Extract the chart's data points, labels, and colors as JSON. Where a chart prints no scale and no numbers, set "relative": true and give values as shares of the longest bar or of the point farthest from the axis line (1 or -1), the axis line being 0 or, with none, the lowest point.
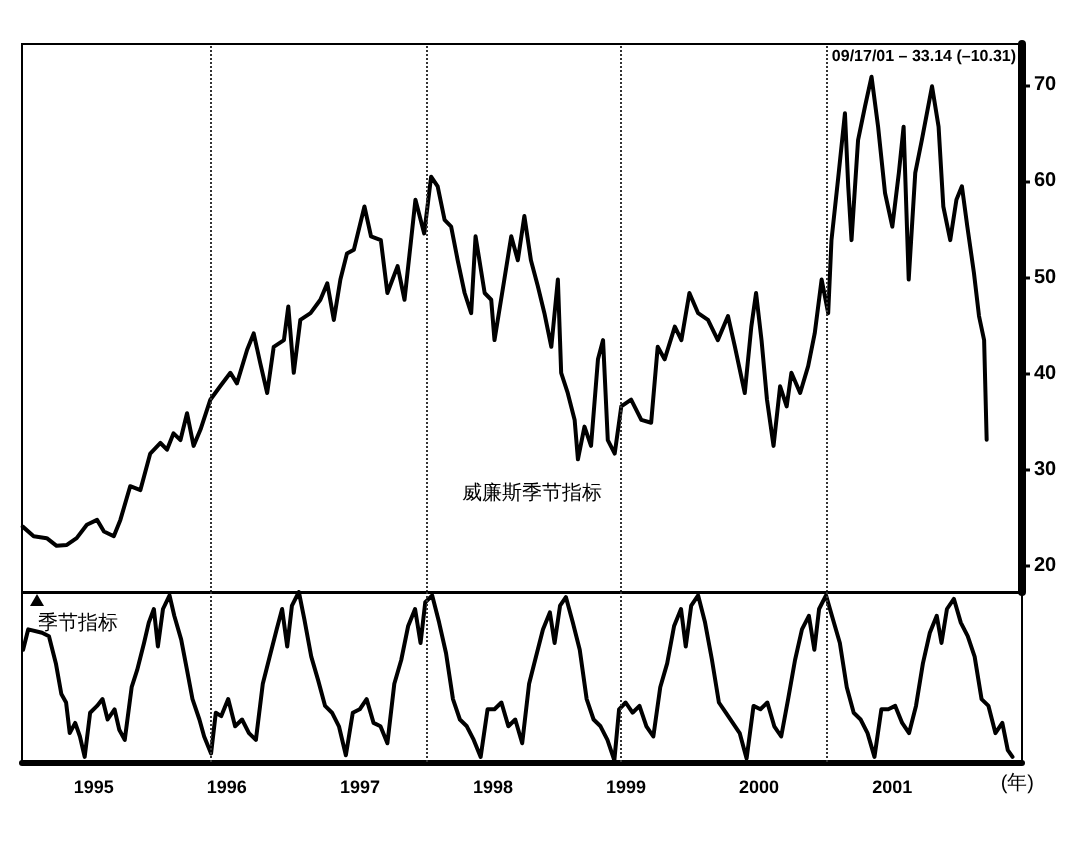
{
  "chart_data": [
    {
      "type": "line",
      "annotations": [
        "09/17/01 – 33.14 (–10.31)",
        "威廉斯季节指标"
      ],
      "x": [
        "1994-06-20",
        "1994-07-20",
        "1994-08-25",
        "1994-09-21",
        "1994-10-19",
        "1994-11-15",
        "1994-12-13",
        "1995-01-10",
        "1995-01-29",
        "1995-02-25",
        "1995-03-15",
        "1995-04-11",
        "1995-05-09",
        "1995-06-05",
        "1995-07-03",
        "1995-07-21",
        "1995-08-08",
        "1995-08-27",
        "1995-09-14",
        "1995-10-02",
        "1995-10-21",
        "1995-11-17",
        "1995-12-14",
        "1996-01-11",
        "1996-01-29",
        "1996-02-26",
        "1996-03-15",
        "1996-04-02",
        "1996-04-21",
        "1996-05-09",
        "1996-06-06",
        "1996-06-18",
        "1996-07-03",
        "1996-07-21",
        "1996-08-18",
        "1996-09-14",
        "1996-10-03",
        "1996-10-21",
        "1996-11-08",
        "1996-11-26",
        "1996-12-15",
        "1997-01-13",
        "1997-01-31",
        "1997-02-27",
        "1997-03-17",
        "1997-04-14",
        "1997-05-03",
        "1997-05-21",
        "1997-06-02",
        "1997-06-26",
        "1997-07-15",
        "1997-08-02",
        "1997-08-21",
        "1997-09-08",
        "1997-09-26",
        "1997-10-15",
        "1997-11-02",
        "1997-11-14",
        "1997-12-09",
        "1997-12-27",
        "1998-01-05",
        "1998-02-01",
        "1998-02-20",
        "1998-03-10",
        "1998-03-28",
        "1998-04-15",
        "1998-05-04",
        "1998-05-22",
        "1998-06-10",
        "1998-06-28",
        "1998-07-07",
        "1998-07-25",
        "1998-08-13",
        "1998-08-22",
        "1998-09-09",
        "1998-09-27",
        "1998-10-16",
        "1998-10-30",
        "1998-11-12",
        "1998-12-01",
        "1998-12-19",
        "1999-01-15",
        "1999-02-12",
        "1999-03-11",
        "1999-03-29",
        "1999-04-17",
        "1999-05-15",
        "1999-06-02",
        "1999-06-24",
        "1999-07-18",
        "1999-08-14",
        "1999-09-10",
        "1999-10-08",
        "1999-10-27",
        "1999-11-23",
        "1999-12-11",
        "1999-12-24",
        "2000-01-08",
        "2000-01-23",
        "2000-02-10",
        "2000-02-28",
        "2000-03-17",
        "2000-03-30",
        "2000-04-23",
        "2000-05-15",
        "2000-06-02",
        "2000-06-21",
        "2000-07-09",
        "2000-07-18",
        "2000-08-05",
        "2000-08-24",
        "2000-09-02",
        "2000-09-11",
        "2000-09-29",
        "2000-10-18",
        "2000-11-05",
        "2000-11-23",
        "2000-12-12",
        "2001-01-01",
        "2001-01-19",
        "2001-02-01",
        "2001-02-15",
        "2001-03-05",
        "2001-03-23",
        "2001-04-20",
        "2001-05-08",
        "2001-05-21",
        "2001-06-09",
        "2001-06-26",
        "2001-07-11",
        "2001-07-26",
        "2001-08-13",
        "2001-08-27",
        "2001-09-10",
        "2001-09-17"
      ],
      "values": [
        24.1,
        23.1,
        22.9,
        22.1,
        22.2,
        22.9,
        24.3,
        24.8,
        23.6,
        23.1,
        24.8,
        28.3,
        27.9,
        31.7,
        32.8,
        32.1,
        33.8,
        33.1,
        35.9,
        32.5,
        34.2,
        37.3,
        38.7,
        40.1,
        39.0,
        42.5,
        44.2,
        41.1,
        38.0,
        42.8,
        43.5,
        47.0,
        40.1,
        45.6,
        46.3,
        47.7,
        49.4,
        45.6,
        49.8,
        52.5,
        52.9,
        57.4,
        54.3,
        53.9,
        48.4,
        51.2,
        47.7,
        53.9,
        58.1,
        54.6,
        60.5,
        59.5,
        56.0,
        55.3,
        51.8,
        48.4,
        46.3,
        54.3,
        48.4,
        47.7,
        43.5,
        49.8,
        54.3,
        51.8,
        56.4,
        51.8,
        49.1,
        46.3,
        42.8,
        49.8,
        40.1,
        38.0,
        35.2,
        31.1,
        34.5,
        32.5,
        41.5,
        43.5,
        33.1,
        31.7,
        36.6,
        37.3,
        35.2,
        34.9,
        42.8,
        41.5,
        44.9,
        43.5,
        48.4,
        46.3,
        45.6,
        43.5,
        46.0,
        42.8,
        38.0,
        44.9,
        48.4,
        43.5,
        37.3,
        32.5,
        38.7,
        36.6,
        40.1,
        38.0,
        40.8,
        44.2,
        49.8,
        46.3,
        53.9,
        60.2,
        67.1,
        59.5,
        53.9,
        64.3,
        67.8,
        70.9,
        65.7,
        58.8,
        55.3,
        60.9,
        65.7,
        49.8,
        60.9,
        64.3,
        69.9,
        65.7,
        57.4,
        53.9,
        58.1,
        59.5,
        55.3,
        50.5,
        46.0,
        43.5,
        33.14
      ],
      "color": "#000000",
      "xlim": [
        "1994-06-18",
        "2001-12-23"
      ],
      "xticks": [
        "1995",
        "1996",
        "1997",
        "1998",
        "1999",
        "2000",
        "2001"
      ],
      "ylim": [
        17.3,
        74.3
      ],
      "yticks": [
        20,
        30,
        40,
        50,
        60,
        70
      ],
      "ref_lines": [
        {
          "axis": "x",
          "value": "1995-11-15",
          "color": "#333333",
          "line_style": "dotted"
        },
        {
          "axis": "x",
          "value": "1997-07-01",
          "color": "#333333",
          "line_style": "dotted"
        },
        {
          "axis": "x",
          "value": "1998-12-17",
          "color": "#333333",
          "line_style": "dotted"
        },
        {
          "axis": "x",
          "value": "2000-07-06",
          "color": "#333333",
          "line_style": "dotted"
        }
      ],
      "tick_labels": "y"
    },
    {
      "type": "line",
      "title": "季节指标",
      "relative": true,
      "xlabel": "(年)",
      "x": [
        "1994-06-21",
        "1994-07-05",
        "1994-08-12",
        "1994-08-31",
        "1994-09-19",
        "1994-10-04",
        "1994-10-17",
        "1994-10-27",
        "1994-11-11",
        "1994-11-24",
        "1994-12-07",
        "1994-12-22",
        "1995-01-10",
        "1995-01-25",
        "1995-02-08",
        "1995-02-27",
        "1995-03-12",
        "1995-03-27",
        "1995-04-15",
        "1995-04-30",
        "1995-05-19",
        "1995-06-01",
        "1995-06-15",
        "1995-06-26",
        "1995-07-10",
        "1995-07-28",
        "1995-08-10",
        "1995-08-29",
        "1995-09-14",
        "1995-09-29",
        "1995-10-18",
        "1995-10-31",
        "1995-11-19",
        "1995-12-02",
        "1995-12-17",
        "1996-01-05",
        "1996-01-24",
        "1996-02-12",
        "1996-03-02",
        "1996-03-21",
        "1996-04-09",
        "1996-04-28",
        "1996-05-17",
        "1996-06-01",
        "1996-06-15",
        "1996-06-28",
        "1996-07-17",
        "1996-08-01",
        "1996-08-20",
        "1996-09-08",
        "1996-09-27",
        "1996-10-16",
        "1996-11-04",
        "1996-11-23",
        "1996-12-12",
        "1996-12-31",
        "1997-01-19",
        "1997-02-07",
        "1997-02-26",
        "1997-03-17",
        "1997-04-05",
        "1997-04-24",
        "1997-05-13",
        "1997-06-01",
        "1997-06-16",
        "1997-06-29",
        "1997-07-18",
        "1997-08-06",
        "1997-08-25",
        "1997-09-13",
        "1997-10-02",
        "1997-10-21",
        "1997-11-09",
        "1997-11-28",
        "1997-12-17",
        "1998-01-05",
        "1998-01-24",
        "1998-02-12",
        "1998-03-03",
        "1998-03-22",
        "1998-04-10",
        "1998-04-29",
        "1998-05-18",
        "1998-06-06",
        "1998-06-19",
        "1998-07-04",
        "1998-07-20",
        "1998-08-08",
        "1998-08-27",
        "1998-09-15",
        "1998-10-04",
        "1998-10-23",
        "1998-11-11",
        "1998-11-30",
        "1998-12-13",
        "1998-12-31",
        "1999-01-19",
        "1999-02-07",
        "1999-02-26",
        "1999-03-17",
        "1999-04-05",
        "1999-04-24",
        "1999-05-13",
        "1999-06-01",
        "1999-06-14",
        "1999-06-29",
        "1999-07-18",
        "1999-08-06",
        "1999-08-25",
        "1999-09-13",
        "1999-10-02",
        "1999-10-21",
        "1999-11-09",
        "1999-11-28",
        "1999-12-17",
        "2000-01-05",
        "2000-01-24",
        "2000-02-12",
        "2000-03-02",
        "2000-03-21",
        "2000-04-09",
        "2000-04-28",
        "2000-05-17",
        "2000-06-01",
        "2000-06-14",
        "2000-07-03",
        "2000-07-22",
        "2000-08-10",
        "2000-08-29",
        "2000-09-17",
        "2000-10-06",
        "2000-10-25",
        "2000-11-13",
        "2000-12-02",
        "2000-12-21",
        "2001-01-09",
        "2001-01-28",
        "2001-02-16",
        "2001-03-07",
        "2001-03-26",
        "2001-04-14",
        "2001-05-03",
        "2001-05-16",
        "2001-05-31",
        "2001-06-19",
        "2001-07-08",
        "2001-07-27",
        "2001-08-15",
        "2001-09-03",
        "2001-09-22",
        "2001-10-11",
        "2001-10-30",
        "2001-11-14",
        "2001-11-27"
      ],
      "values": [
        0.66,
        0.78,
        0.76,
        0.74,
        0.58,
        0.4,
        0.35,
        0.17,
        0.23,
        0.15,
        0.03,
        0.29,
        0.33,
        0.37,
        0.25,
        0.31,
        0.19,
        0.13,
        0.44,
        0.54,
        0.7,
        0.82,
        0.9,
        0.68,
        0.9,
        0.98,
        0.86,
        0.72,
        0.54,
        0.37,
        0.25,
        0.15,
        0.05,
        0.29,
        0.27,
        0.37,
        0.21,
        0.25,
        0.17,
        0.13,
        0.46,
        0.62,
        0.78,
        0.9,
        0.68,
        0.92,
        1,
        0.84,
        0.62,
        0.48,
        0.33,
        0.29,
        0.21,
        0.04,
        0.29,
        0.31,
        0.37,
        0.23,
        0.21,
        0.11,
        0.46,
        0.6,
        0.8,
        0.9,
        0.7,
        0.94,
        0.98,
        0.82,
        0.64,
        0.37,
        0.25,
        0.21,
        0.13,
        0.03,
        0.31,
        0.31,
        0.35,
        0.21,
        0.25,
        0.11,
        0.46,
        0.62,
        0.78,
        0.88,
        0.7,
        0.92,
        0.97,
        0.82,
        0.66,
        0.37,
        0.25,
        0.21,
        0.13,
        0.01,
        0.31,
        0.35,
        0.29,
        0.33,
        0.21,
        0.15,
        0.44,
        0.58,
        0.8,
        0.9,
        0.68,
        0.92,
        0.98,
        0.82,
        0.6,
        0.35,
        0.29,
        0.23,
        0.17,
        0.02,
        0.33,
        0.31,
        0.35,
        0.21,
        0.15,
        0.37,
        0.6,
        0.78,
        0.86,
        0.66,
        0.9,
        0.98,
        0.84,
        0.7,
        0.44,
        0.29,
        0.25,
        0.17,
        0.03,
        0.31,
        0.31,
        0.33,
        0.23,
        0.17,
        0.33,
        0.58,
        0.76,
        0.86,
        0.7,
        0.9,
        0.96,
        0.82,
        0.74,
        0.62,
        0.37,
        0.33,
        0.17,
        0.23,
        0.07,
        0.03
      ],
      "color": "#000000",
      "xlim": [
        "1994-06-18",
        "2001-12-23"
      ],
      "xticks": [
        "1995",
        "1996",
        "1997",
        "1998",
        "1999",
        "2000",
        "2001"
      ],
      "ref_lines": [
        {
          "axis": "x",
          "value": "1995-11-15",
          "color": "#333333",
          "line_style": "dotted"
        },
        {
          "axis": "x",
          "value": "1997-07-01",
          "color": "#333333",
          "line_style": "dotted"
        },
        {
          "axis": "x",
          "value": "1998-12-17",
          "color": "#333333",
          "line_style": "dotted"
        },
        {
          "axis": "x",
          "value": "2000-07-06",
          "color": "#333333",
          "line_style": "dotted"
        }
      ],
      "tick_labels": "x"
    }
  ]
}
